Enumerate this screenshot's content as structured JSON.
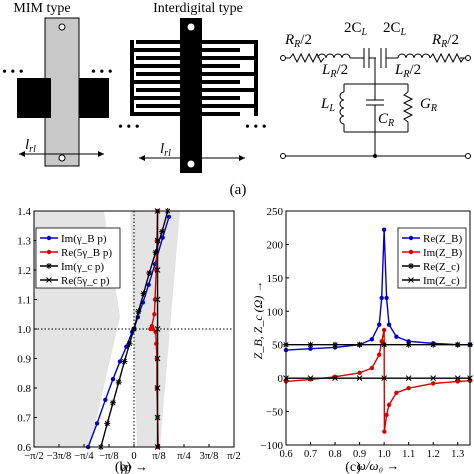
{
  "top": {
    "mim_title": "MIM type",
    "interdigital_title": "Interdigital type",
    "length_label": "l",
    "length_sub": "rl",
    "circuit": {
      "rr_left": "R",
      "rr_sub": "R",
      "rr_div": "/2",
      "c_left": "2C",
      "c_sub": "L",
      "c_right": "2C",
      "rr_right": "R",
      "lr_left": "L",
      "lr_sub": "R",
      "lr_div": "/2",
      "lr_right": "L",
      "ll": "L",
      "ll_sub": "L",
      "cr": "C",
      "cr_sub": "R",
      "gr": "G",
      "gr_sub": "R"
    },
    "caption": "(a)"
  },
  "panel_b": {
    "caption": "(b)",
    "ylim": [
      0.6,
      1.4
    ],
    "yticks": [
      "0.6",
      "0.7",
      "0.8",
      "0.9",
      "1.0",
      "1.1",
      "1.2",
      "1.3",
      "1.4"
    ],
    "xticks": [
      "−π/2",
      "−3π/8",
      "−π/4",
      "−π/8",
      "0",
      "π/8",
      "π/4",
      "3π/8",
      "π/2"
    ],
    "xlabel": "γp →",
    "legend": [
      "Im(γ_B p)",
      "Re(5γ_B p)",
      "Im(γ_c p)",
      "Re(5γ_c p)"
    ]
  },
  "panel_c": {
    "caption": "(c)",
    "ylim": [
      -100,
      250
    ],
    "yticks": [
      "−100",
      "−50",
      "0",
      "50",
      "100",
      "150",
      "200",
      "250"
    ],
    "xticks": [
      "0.6",
      "0.7",
      "0.8",
      "0.9",
      "1.0",
      "1.1",
      "1.2",
      "1.3"
    ],
    "xlabel": "ω/ω₀ →",
    "ylabel": "Z_B, Z_c (Ω) →",
    "legend": [
      "Re(Z_B)",
      "Im(Z_B)",
      "Re(Z_c)",
      "Im(Z_c)"
    ]
  },
  "colors": {
    "blue": "#0000cc",
    "red": "#dd0000",
    "black": "#000000",
    "gray": "#c8c8c8",
    "band": "#e6e6e6"
  },
  "chart_data": [
    {
      "type": "line",
      "title": "",
      "xlabel": "γp",
      "ylabel": "",
      "xlim": [
        -1.5708,
        1.5708
      ],
      "ylim": [
        0.6,
        1.4
      ],
      "series": [
        {
          "name": "Im(γ_B p)",
          "x": [
            -0.72,
            -0.58,
            -0.45,
            -0.33,
            -0.22,
            -0.12,
            -0.03,
            0.0,
            0.06,
            0.14,
            0.23,
            0.33,
            0.45,
            0.55
          ],
          "y": [
            0.6,
            0.68,
            0.76,
            0.83,
            0.89,
            0.94,
            0.99,
            1.0,
            1.04,
            1.09,
            1.15,
            1.22,
            1.31,
            1.38
          ]
        },
        {
          "name": "Re(5γ_B p)",
          "x": [
            0.38,
            0.37,
            0.36,
            0.36,
            0.35,
            0.34,
            0.3,
            0.26,
            0.28,
            0.32,
            0.33,
            0.35,
            0.36,
            0.37
          ],
          "y": [
            0.6,
            0.7,
            0.8,
            0.9,
            0.95,
            0.99,
            1.0,
            1.0,
            1.01,
            1.05,
            1.1,
            1.2,
            1.3,
            1.4
          ]
        },
        {
          "name": "Im(γ_c p)",
          "x": [
            -0.52,
            -0.42,
            -0.33,
            -0.24,
            -0.15,
            -0.07,
            0.0,
            0.07,
            0.15,
            0.24,
            0.34,
            0.44,
            0.53
          ],
          "y": [
            0.6,
            0.68,
            0.75,
            0.82,
            0.89,
            0.95,
            1.0,
            1.06,
            1.12,
            1.19,
            1.26,
            1.33,
            1.4
          ]
        },
        {
          "name": "Re(5γ_c p)",
          "x": [
            0.37,
            0.37,
            0.37,
            0.37,
            0.37,
            0.37,
            0.37,
            0.37,
            0.37
          ],
          "y": [
            0.6,
            0.7,
            0.8,
            0.9,
            1.0,
            1.1,
            1.2,
            1.3,
            1.4
          ]
        }
      ]
    },
    {
      "type": "line",
      "title": "",
      "xlabel": "ω/ω₀",
      "ylabel": "Z_B, Z_c (Ω)",
      "xlim": [
        0.6,
        1.35
      ],
      "ylim": [
        -100,
        250
      ],
      "series": [
        {
          "name": "Re(Z_B)",
          "x": [
            0.6,
            0.7,
            0.8,
            0.9,
            0.95,
            0.98,
            0.99,
            1.0,
            1.01,
            1.02,
            1.05,
            1.1,
            1.2,
            1.3,
            1.35
          ],
          "y": [
            42,
            44,
            46,
            50,
            58,
            80,
            120,
            222,
            120,
            80,
            62,
            55,
            52,
            50,
            50
          ]
        },
        {
          "name": "Im(Z_B)",
          "x": [
            0.6,
            0.7,
            0.8,
            0.9,
            0.95,
            0.98,
            0.99,
            1.0,
            1.001,
            1.01,
            1.02,
            1.05,
            1.1,
            1.2,
            1.3,
            1.35
          ],
          "y": [
            -5,
            -2,
            2,
            8,
            15,
            35,
            55,
            72,
            -80,
            -55,
            -40,
            -22,
            -15,
            -8,
            -5,
            -4
          ]
        },
        {
          "name": "Re(Z_c)",
          "x": [
            0.6,
            0.7,
            0.8,
            0.9,
            1.0,
            1.1,
            1.2,
            1.3,
            1.35
          ],
          "y": [
            50,
            50,
            50,
            50,
            50,
            50,
            50,
            50,
            50
          ]
        },
        {
          "name": "Im(Z_c)",
          "x": [
            0.6,
            0.7,
            0.8,
            0.9,
            1.0,
            1.1,
            1.2,
            1.3,
            1.35
          ],
          "y": [
            0,
            0,
            0,
            0,
            0,
            0,
            0,
            0,
            0
          ]
        }
      ]
    }
  ]
}
